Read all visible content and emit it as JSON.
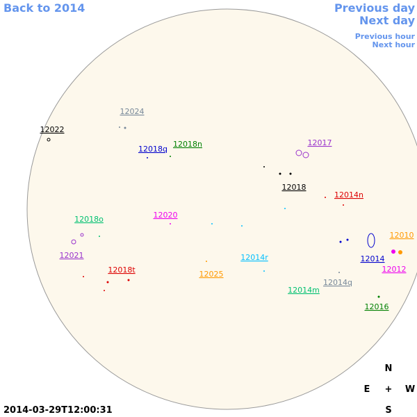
{
  "nav": {
    "back": "Back to 2014",
    "previous_day": "Previous day",
    "next_day": "Next day",
    "previous_hour": "Previous hour",
    "next_hour": "Next hour"
  },
  "regions": [
    {
      "label": "12024",
      "color": "#778899"
    },
    {
      "label": "12022",
      "color": "#000000"
    },
    {
      "label": "12018q",
      "color": "#0000cd"
    },
    {
      "label": "12018n",
      "color": "#008000"
    },
    {
      "label": "12017",
      "color": "#9932cc"
    },
    {
      "label": "12018",
      "color": "#000000"
    },
    {
      "label": "12014n",
      "color": "#dd0000"
    },
    {
      "label": "12018o",
      "color": "#00c070"
    },
    {
      "label": "12020",
      "color": "#ee00ee"
    },
    {
      "label": "12010",
      "color": "#ff9900"
    },
    {
      "label": "12021",
      "color": "#9932cc"
    },
    {
      "label": "12014r",
      "color": "#00bfff"
    },
    {
      "label": "12014",
      "color": "#0000cd"
    },
    {
      "label": "12012",
      "color": "#ee00ee"
    },
    {
      "label": "12018t",
      "color": "#dd0000"
    },
    {
      "label": "12025",
      "color": "#ff9900"
    },
    {
      "label": "12014q",
      "color": "#778899"
    },
    {
      "label": "12014m",
      "color": "#00c070"
    },
    {
      "label": "12016",
      "color": "#008000"
    }
  ],
  "compass": {
    "north": "N",
    "east": "E",
    "center": "+",
    "west": "W",
    "south": "S"
  },
  "timestamp": "2014-03-29T12:00:31"
}
